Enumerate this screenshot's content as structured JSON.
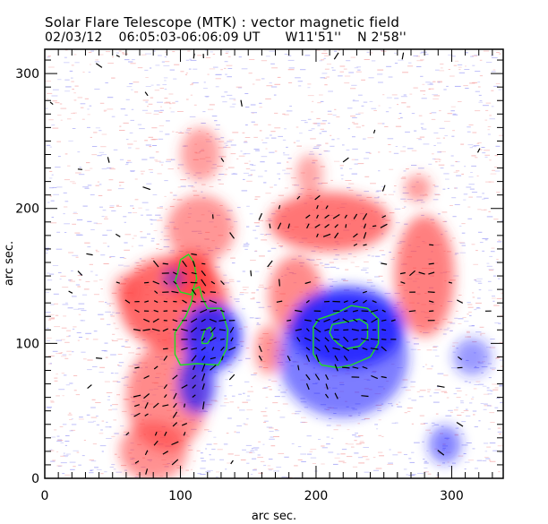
{
  "header": {
    "title": "Solar Flare Telescope (MTK) : vector magnetic field",
    "date": "02/03/12",
    "time_range": "06:05:03-06:06:09 UT",
    "longitude": "W11'51''",
    "latitude": "N 2'58''"
  },
  "colors": {
    "positive_polarity": "#ff4040",
    "negative_polarity": "#2020ff",
    "contour": "#22dd22",
    "vector": "#000000",
    "background": "#ffffff"
  },
  "chart_data": {
    "type": "heatmap",
    "title": "Solar Flare Telescope (MTK) : vector magnetic field",
    "xlabel": "arc sec.",
    "ylabel": "arc sec.",
    "xlim": [
      0,
      338
    ],
    "ylim": [
      0,
      318
    ],
    "xticks": [
      0,
      100,
      200,
      300
    ],
    "yticks": [
      0,
      100,
      200,
      300
    ],
    "xtick_labels": [
      "0",
      "100",
      "200",
      "300"
    ],
    "ytick_labels": [
      "0",
      "100",
      "200",
      "300"
    ],
    "minor_tick_step": 10,
    "field_regions": [
      {
        "name": "positive-large-west",
        "polarity": "positive",
        "x": 95,
        "y": 130,
        "rx": 40,
        "ry": 35,
        "strength": 0.9
      },
      {
        "name": "positive-core-west",
        "polarity": "positive",
        "x": 108,
        "y": 150,
        "rx": 18,
        "ry": 18,
        "strength": 1.0
      },
      {
        "name": "positive-tail-south",
        "polarity": "positive",
        "x": 90,
        "y": 60,
        "rx": 30,
        "ry": 40,
        "strength": 0.6
      },
      {
        "name": "positive-foot",
        "polarity": "positive",
        "x": 80,
        "y": 20,
        "rx": 25,
        "ry": 22,
        "strength": 0.55
      },
      {
        "name": "positive-north-arc",
        "polarity": "positive",
        "x": 115,
        "y": 185,
        "rx": 25,
        "ry": 25,
        "strength": 0.5
      },
      {
        "name": "positive-arc-east-top",
        "polarity": "positive",
        "x": 210,
        "y": 190,
        "rx": 45,
        "ry": 22,
        "strength": 0.8
      },
      {
        "name": "positive-arc-east-right",
        "polarity": "positive",
        "x": 280,
        "y": 150,
        "rx": 22,
        "ry": 45,
        "strength": 0.7
      },
      {
        "name": "positive-arc-east-left",
        "polarity": "positive",
        "x": 185,
        "y": 135,
        "rx": 20,
        "ry": 30,
        "strength": 0.6
      },
      {
        "name": "positive-small-mid",
        "polarity": "positive",
        "x": 165,
        "y": 95,
        "rx": 10,
        "ry": 18,
        "strength": 0.55
      },
      {
        "name": "positive-blob-1",
        "polarity": "positive",
        "x": 115,
        "y": 240,
        "rx": 15,
        "ry": 20,
        "strength": 0.4
      },
      {
        "name": "positive-blob-2",
        "polarity": "positive",
        "x": 275,
        "y": 215,
        "rx": 10,
        "ry": 10,
        "strength": 0.45
      },
      {
        "name": "positive-blob-3",
        "polarity": "positive",
        "x": 195,
        "y": 225,
        "rx": 10,
        "ry": 15,
        "strength": 0.35
      },
      {
        "name": "positive-blob-4",
        "polarity": "positive",
        "x": 60,
        "y": 140,
        "rx": 10,
        "ry": 12,
        "strength": 0.35
      },
      {
        "name": "negative-core-west",
        "polarity": "negative",
        "x": 123,
        "y": 105,
        "rx": 22,
        "ry": 25,
        "strength": 1.0
      },
      {
        "name": "negative-tail-west",
        "polarity": "negative",
        "x": 112,
        "y": 70,
        "rx": 14,
        "ry": 22,
        "strength": 0.8
      },
      {
        "name": "negative-small-north",
        "polarity": "negative",
        "x": 95,
        "y": 148,
        "rx": 7,
        "ry": 7,
        "strength": 0.6
      },
      {
        "name": "negative-core-east",
        "polarity": "negative",
        "x": 223,
        "y": 112,
        "rx": 42,
        "ry": 30,
        "strength": 1.0
      },
      {
        "name": "negative-halo-east",
        "polarity": "negative",
        "x": 220,
        "y": 90,
        "rx": 48,
        "ry": 45,
        "strength": 0.55
      },
      {
        "name": "negative-spot-se",
        "polarity": "negative",
        "x": 295,
        "y": 25,
        "rx": 12,
        "ry": 14,
        "strength": 0.5
      },
      {
        "name": "negative-spot-e",
        "polarity": "negative",
        "x": 315,
        "y": 90,
        "rx": 14,
        "ry": 14,
        "strength": 0.35
      }
    ],
    "contours": [
      {
        "name": "contour-west-north",
        "points": [
          [
            98,
            152
          ],
          [
            100,
            162
          ],
          [
            106,
            166
          ],
          [
            110,
            160
          ],
          [
            112,
            148
          ],
          [
            108,
            136
          ],
          [
            100,
            138
          ],
          [
            96,
            146
          ]
        ]
      },
      {
        "name": "contour-west-main",
        "points": [
          [
            110,
            140
          ],
          [
            114,
            142
          ],
          [
            116,
            134
          ],
          [
            120,
            126
          ],
          [
            130,
            126
          ],
          [
            135,
            110
          ],
          [
            134,
            96
          ],
          [
            128,
            84
          ],
          [
            112,
            85
          ],
          [
            100,
            84
          ],
          [
            96,
            92
          ],
          [
            96,
            108
          ],
          [
            104,
            120
          ],
          [
            108,
            130
          ]
        ]
      },
      {
        "name": "contour-west-inner",
        "points": [
          [
            116,
            104
          ],
          [
            118,
            110
          ],
          [
            122,
            112
          ],
          [
            124,
            106
          ],
          [
            120,
            100
          ],
          [
            116,
            100
          ]
        ]
      },
      {
        "name": "contour-east-outer",
        "points": [
          [
            198,
            112
          ],
          [
            202,
            118
          ],
          [
            214,
            122
          ],
          [
            226,
            128
          ],
          [
            238,
            126
          ],
          [
            246,
            118
          ],
          [
            246,
            100
          ],
          [
            240,
            90
          ],
          [
            226,
            84
          ],
          [
            216,
            82
          ],
          [
            204,
            84
          ],
          [
            198,
            92
          ]
        ]
      },
      {
        "name": "contour-east-inner",
        "points": [
          [
            210,
            108
          ],
          [
            212,
            114
          ],
          [
            222,
            116
          ],
          [
            232,
            118
          ],
          [
            238,
            114
          ],
          [
            238,
            104
          ],
          [
            232,
            98
          ],
          [
            222,
            96
          ],
          [
            216,
            100
          ],
          [
            212,
            104
          ]
        ]
      }
    ]
  }
}
